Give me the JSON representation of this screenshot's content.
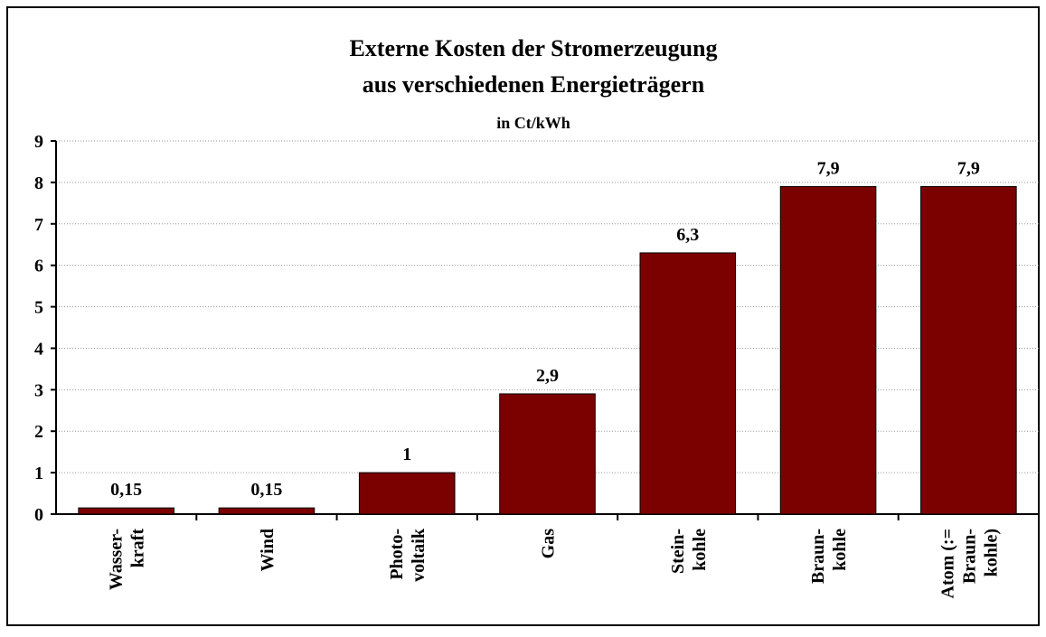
{
  "chart_data": {
    "type": "bar",
    "title": [
      "Externe Kosten der Stromerzeugung",
      "aus verschiedenen Energieträgern"
    ],
    "subtitle": "in Ct/kWh",
    "categories": [
      [
        "Wasser-",
        "kraft"
      ],
      [
        "Wind"
      ],
      [
        "Photo-",
        "voltaik"
      ],
      [
        "Gas"
      ],
      [
        "Stein-",
        "kohle"
      ],
      [
        "Braun-",
        "kohle"
      ],
      [
        "Atom (:=",
        "Braun-",
        "kohle)"
      ]
    ],
    "values": [
      0.15,
      0.15,
      1,
      2.9,
      6.3,
      7.9,
      7.9
    ],
    "value_labels": [
      "0,15",
      "0,15",
      "1",
      "2,9",
      "6,3",
      "7,9",
      "7,9"
    ],
    "color": "#7b0000",
    "ylim": [
      0,
      9
    ],
    "yticks": [
      0,
      1,
      2,
      3,
      4,
      5,
      6,
      7,
      8,
      9
    ],
    "grid": true
  }
}
